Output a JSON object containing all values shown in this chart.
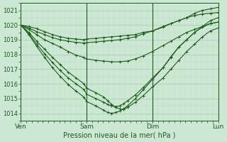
{
  "xlabel": "Pression niveau de la mer( hPa )",
  "bg_color": "#cce8d4",
  "grid_color_major": "#aaccaa",
  "grid_color_minor": "#bbddbb",
  "line_color": "#1e5c1e",
  "ylim": [
    1013.5,
    1021.5
  ],
  "yticks": [
    1014,
    1015,
    1016,
    1017,
    1018,
    1019,
    1020,
    1021
  ],
  "xtick_labels": [
    "Ven",
    "Sam",
    "Dim",
    "Lun"
  ],
  "xtick_positions": [
    0,
    0.333,
    0.667,
    1.0
  ],
  "series": [
    {
      "points": [
        [
          0,
          1020.0
        ],
        [
          0.04,
          1019.9
        ],
        [
          0.08,
          1019.75
        ],
        [
          0.12,
          1019.55
        ],
        [
          0.16,
          1019.35
        ],
        [
          0.2,
          1019.2
        ],
        [
          0.24,
          1019.1
        ],
        [
          0.28,
          1019.05
        ],
        [
          0.32,
          1019.0
        ],
        [
          0.333,
          1019.05
        ],
        [
          0.38,
          1019.1
        ],
        [
          0.42,
          1019.15
        ],
        [
          0.46,
          1019.2
        ],
        [
          0.5,
          1019.25
        ],
        [
          0.54,
          1019.3
        ],
        [
          0.58,
          1019.35
        ],
        [
          0.62,
          1019.5
        ],
        [
          0.667,
          1019.6
        ],
        [
          0.72,
          1019.9
        ],
        [
          0.76,
          1020.1
        ],
        [
          0.8,
          1020.3
        ],
        [
          0.84,
          1020.5
        ],
        [
          0.88,
          1020.8
        ],
        [
          0.92,
          1021.0
        ],
        [
          0.96,
          1021.1
        ],
        [
          1.0,
          1021.2
        ]
      ]
    },
    {
      "points": [
        [
          0,
          1020.0
        ],
        [
          0.04,
          1019.8
        ],
        [
          0.08,
          1019.55
        ],
        [
          0.12,
          1019.35
        ],
        [
          0.16,
          1019.15
        ],
        [
          0.2,
          1019.0
        ],
        [
          0.24,
          1018.9
        ],
        [
          0.28,
          1018.82
        ],
        [
          0.32,
          1018.78
        ],
        [
          0.333,
          1018.8
        ],
        [
          0.38,
          1018.85
        ],
        [
          0.42,
          1018.9
        ],
        [
          0.46,
          1018.95
        ],
        [
          0.5,
          1019.0
        ],
        [
          0.54,
          1019.1
        ],
        [
          0.58,
          1019.2
        ],
        [
          0.62,
          1019.4
        ],
        [
          0.667,
          1019.6
        ],
        [
          0.72,
          1019.85
        ],
        [
          0.76,
          1020.1
        ],
        [
          0.8,
          1020.3
        ],
        [
          0.84,
          1020.5
        ],
        [
          0.88,
          1020.65
        ],
        [
          0.92,
          1020.75
        ],
        [
          0.96,
          1020.8
        ],
        [
          1.0,
          1020.85
        ]
      ]
    },
    {
      "points": [
        [
          0,
          1020.0
        ],
        [
          0.04,
          1019.7
        ],
        [
          0.08,
          1019.35
        ],
        [
          0.12,
          1019.0
        ],
        [
          0.16,
          1018.75
        ],
        [
          0.2,
          1018.5
        ],
        [
          0.24,
          1018.2
        ],
        [
          0.28,
          1017.95
        ],
        [
          0.32,
          1017.8
        ],
        [
          0.333,
          1017.7
        ],
        [
          0.38,
          1017.6
        ],
        [
          0.42,
          1017.55
        ],
        [
          0.46,
          1017.5
        ],
        [
          0.5,
          1017.5
        ],
        [
          0.54,
          1017.55
        ],
        [
          0.58,
          1017.7
        ],
        [
          0.62,
          1017.9
        ],
        [
          0.667,
          1018.2
        ],
        [
          0.72,
          1018.6
        ],
        [
          0.76,
          1018.9
        ],
        [
          0.8,
          1019.2
        ],
        [
          0.84,
          1019.5
        ],
        [
          0.88,
          1019.7
        ],
        [
          0.92,
          1019.9
        ],
        [
          0.96,
          1020.1
        ],
        [
          1.0,
          1020.2
        ]
      ]
    },
    {
      "points": [
        [
          0,
          1020.0
        ],
        [
          0.04,
          1019.5
        ],
        [
          0.08,
          1018.9
        ],
        [
          0.12,
          1018.35
        ],
        [
          0.16,
          1017.8
        ],
        [
          0.2,
          1017.3
        ],
        [
          0.24,
          1016.8
        ],
        [
          0.28,
          1016.4
        ],
        [
          0.32,
          1016.0
        ],
        [
          0.333,
          1015.7
        ],
        [
          0.38,
          1015.4
        ],
        [
          0.42,
          1015.1
        ],
        [
          0.44,
          1014.85
        ],
        [
          0.46,
          1014.6
        ],
        [
          0.48,
          1014.4
        ],
        [
          0.5,
          1014.3
        ],
        [
          0.52,
          1014.25
        ],
        [
          0.54,
          1014.4
        ],
        [
          0.58,
          1014.75
        ],
        [
          0.62,
          1015.2
        ],
        [
          0.667,
          1015.8
        ],
        [
          0.72,
          1016.4
        ],
        [
          0.76,
          1017.0
        ],
        [
          0.8,
          1017.6
        ],
        [
          0.84,
          1018.2
        ],
        [
          0.88,
          1018.7
        ],
        [
          0.92,
          1019.2
        ],
        [
          0.96,
          1019.6
        ],
        [
          1.0,
          1019.8
        ]
      ]
    },
    {
      "points": [
        [
          0,
          1020.0
        ],
        [
          0.04,
          1019.35
        ],
        [
          0.08,
          1018.55
        ],
        [
          0.12,
          1017.8
        ],
        [
          0.16,
          1017.1
        ],
        [
          0.2,
          1016.5
        ],
        [
          0.24,
          1015.95
        ],
        [
          0.28,
          1015.5
        ],
        [
          0.32,
          1015.1
        ],
        [
          0.333,
          1014.8
        ],
        [
          0.38,
          1014.5
        ],
        [
          0.42,
          1014.2
        ],
        [
          0.44,
          1014.05
        ],
        [
          0.46,
          1014.0
        ],
        [
          0.48,
          1014.05
        ],
        [
          0.5,
          1014.15
        ],
        [
          0.52,
          1014.3
        ],
        [
          0.54,
          1014.5
        ],
        [
          0.58,
          1015.0
        ],
        [
          0.62,
          1015.6
        ],
        [
          0.667,
          1016.3
        ],
        [
          0.72,
          1017.1
        ],
        [
          0.76,
          1017.8
        ],
        [
          0.8,
          1018.5
        ],
        [
          0.84,
          1019.0
        ],
        [
          0.88,
          1019.5
        ],
        [
          0.92,
          1019.9
        ],
        [
          0.96,
          1020.3
        ],
        [
          1.0,
          1020.5
        ]
      ]
    },
    {
      "points": [
        [
          0,
          1020.0
        ],
        [
          0.04,
          1019.4
        ],
        [
          0.08,
          1018.7
        ],
        [
          0.12,
          1018.05
        ],
        [
          0.16,
          1017.45
        ],
        [
          0.2,
          1016.9
        ],
        [
          0.24,
          1016.4
        ],
        [
          0.28,
          1016.0
        ],
        [
          0.32,
          1015.6
        ],
        [
          0.333,
          1015.3
        ],
        [
          0.38,
          1015.0
        ],
        [
          0.42,
          1014.75
        ],
        [
          0.44,
          1014.6
        ],
        [
          0.46,
          1014.5
        ],
        [
          0.48,
          1014.45
        ],
        [
          0.5,
          1014.5
        ],
        [
          0.52,
          1014.65
        ],
        [
          0.54,
          1014.85
        ],
        [
          0.58,
          1015.25
        ],
        [
          0.62,
          1015.75
        ],
        [
          0.667,
          1016.4
        ],
        [
          0.72,
          1017.1
        ],
        [
          0.76,
          1017.85
        ],
        [
          0.8,
          1018.5
        ],
        [
          0.84,
          1019.0
        ],
        [
          0.88,
          1019.5
        ],
        [
          0.92,
          1019.85
        ],
        [
          0.96,
          1020.1
        ],
        [
          1.0,
          1020.2
        ]
      ]
    }
  ]
}
